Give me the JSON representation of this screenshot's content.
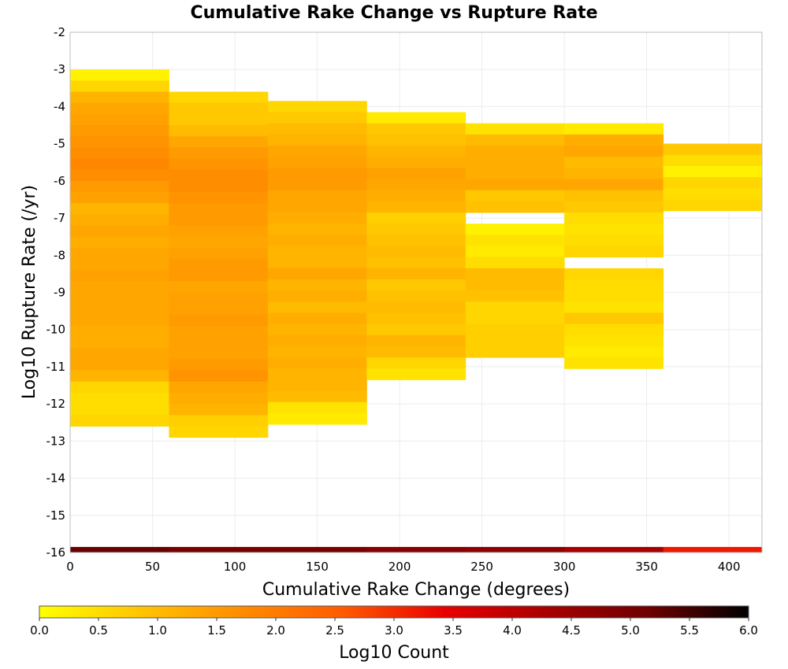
{
  "chart_data": {
    "type": "heatmap",
    "title": "Cumulative Rake Change vs Rupture Rate",
    "xlabel": "Cumulative Rake Change (degrees)",
    "ylabel": "Log10 Rupture Rate (/yr)",
    "xlim": [
      0,
      420
    ],
    "ylim": [
      -16,
      -2
    ],
    "x_ticks": [
      "0",
      "50",
      "100",
      "150",
      "200",
      "250",
      "300",
      "350",
      "400"
    ],
    "y_ticks": [
      "-2",
      "-3",
      "-4",
      "-5",
      "-6",
      "-7",
      "-8",
      "-9",
      "-10",
      "-11",
      "-12",
      "-13",
      "-14",
      "-15",
      "-16"
    ],
    "grid": true,
    "x_bin_width": 60,
    "y_bin_height": 0.3,
    "columns": [
      {
        "x_start": 0,
        "y_top": -3.0,
        "log10_count": [
          0.2,
          0.6,
          1.1,
          1.3,
          1.4,
          1.5,
          1.6,
          1.7,
          1.8,
          1.7,
          1.5,
          1.4,
          1.1,
          1.2,
          1.3,
          1.2,
          1.3,
          1.3,
          1.4,
          1.3,
          1.3,
          1.3,
          1.3,
          1.2,
          1.2,
          1.3,
          1.3,
          1.1,
          0.6,
          0.5,
          0.5,
          0.6
        ]
      },
      {
        "x_start": 60,
        "y_top": -3.6,
        "log10_count": [
          0.6,
          0.8,
          0.8,
          1.0,
          1.3,
          1.5,
          1.6,
          1.7,
          1.7,
          1.6,
          1.5,
          1.5,
          1.4,
          1.3,
          1.4,
          1.5,
          1.5,
          1.3,
          1.4,
          1.4,
          1.5,
          1.4,
          1.4,
          1.4,
          1.5,
          1.6,
          1.3,
          1.2,
          1.1,
          0.7,
          0.6
        ]
      },
      {
        "x_start": 120,
        "y_top": -3.85,
        "log10_count": [
          0.6,
          0.8,
          1.0,
          1.1,
          1.3,
          1.4,
          1.5,
          1.5,
          1.3,
          1.3,
          1.2,
          1.1,
          1.2,
          1.1,
          1.1,
          1.3,
          1.1,
          1.2,
          1.0,
          1.2,
          1.1,
          1.2,
          1.1,
          1.2,
          1.1,
          1.1,
          1.0,
          0.4,
          0.3
        ]
      },
      {
        "x_start": 180,
        "y_top": -4.15,
        "log10_count": [
          0.3,
          0.8,
          0.9,
          1.1,
          1.2,
          1.4,
          1.3,
          1.2,
          1.1,
          0.7,
          0.8,
          0.9,
          1.0,
          0.9,
          1.1,
          0.8,
          0.9,
          1.0,
          0.9,
          0.8,
          1.1,
          1.0,
          0.6,
          0.4
        ]
      },
      {
        "x_start": 240,
        "y_top": -4.45,
        "log10_count": [
          0.4,
          1.0,
          1.2,
          1.2,
          1.2,
          1.3,
          0.8,
          0.9,
          null,
          0.2,
          0.4,
          0.3,
          0.5,
          1.0,
          1.0,
          0.9,
          0.6,
          0.6,
          0.7,
          0.7,
          0.7
        ]
      },
      {
        "x_start": 300,
        "y_top": -4.45,
        "log10_count": [
          0.3,
          1.2,
          1.3,
          1.0,
          1.1,
          1.3,
          0.9,
          0.8,
          0.5,
          0.4,
          0.5,
          0.6,
          null,
          0.6,
          0.5,
          0.5,
          0.4,
          0.8,
          0.5,
          0.4,
          0.3,
          0.4
        ]
      },
      {
        "x_start": 360,
        "y_top": -5.0,
        "log10_count": [
          0.8,
          0.5,
          0.2,
          0.6,
          0.5,
          0.6
        ]
      },
      {
        "x_start": 0,
        "y_top": -15.85,
        "log10_count": [
          5.2
        ],
        "row_height": 0.15,
        "x_bins": [
          5.2,
          5.0,
          5.0,
          4.8,
          4.7,
          4.3,
          3.2
        ]
      }
    ],
    "colorbar": {
      "label": "Log10 Count",
      "range": [
        0.0,
        6.0
      ],
      "ticks": [
        "0.0",
        "0.5",
        "1.0",
        "1.5",
        "2.0",
        "2.5",
        "3.0",
        "3.5",
        "4.0",
        "4.5",
        "5.0",
        "5.5",
        "6.0"
      ],
      "stops": [
        "#ffff00",
        "#ffc400",
        "#ff8c00",
        "#ff5a00",
        "#e80000",
        "#a80000",
        "#6e0000",
        "#000000"
      ]
    }
  }
}
